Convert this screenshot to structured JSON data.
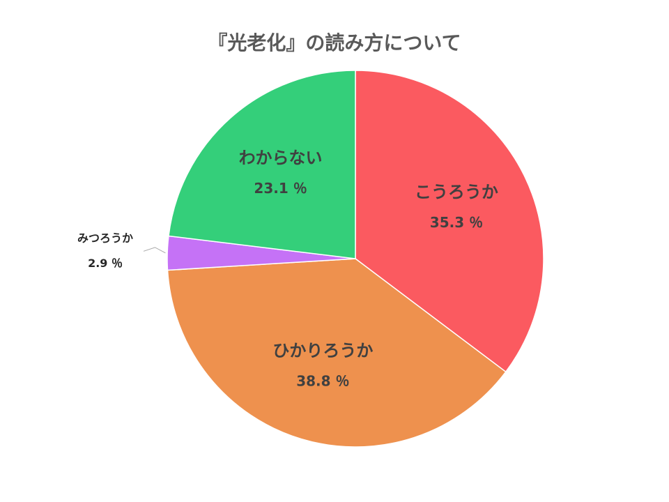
{
  "chart_data": {
    "type": "pie",
    "title": "『光老化』の読み方について",
    "categories": [
      "こうろうか",
      "ひかりろうか",
      "みつろうか",
      "わからない"
    ],
    "values": [
      35.3,
      38.8,
      2.9,
      23.1
    ],
    "value_labels": [
      "35.3 ％",
      "38.8 ％",
      "2.9 ％",
      "23.1 ％"
    ],
    "colors": [
      "#fb5a60",
      "#ee914e",
      "#c572f6",
      "#34cf7a"
    ]
  }
}
